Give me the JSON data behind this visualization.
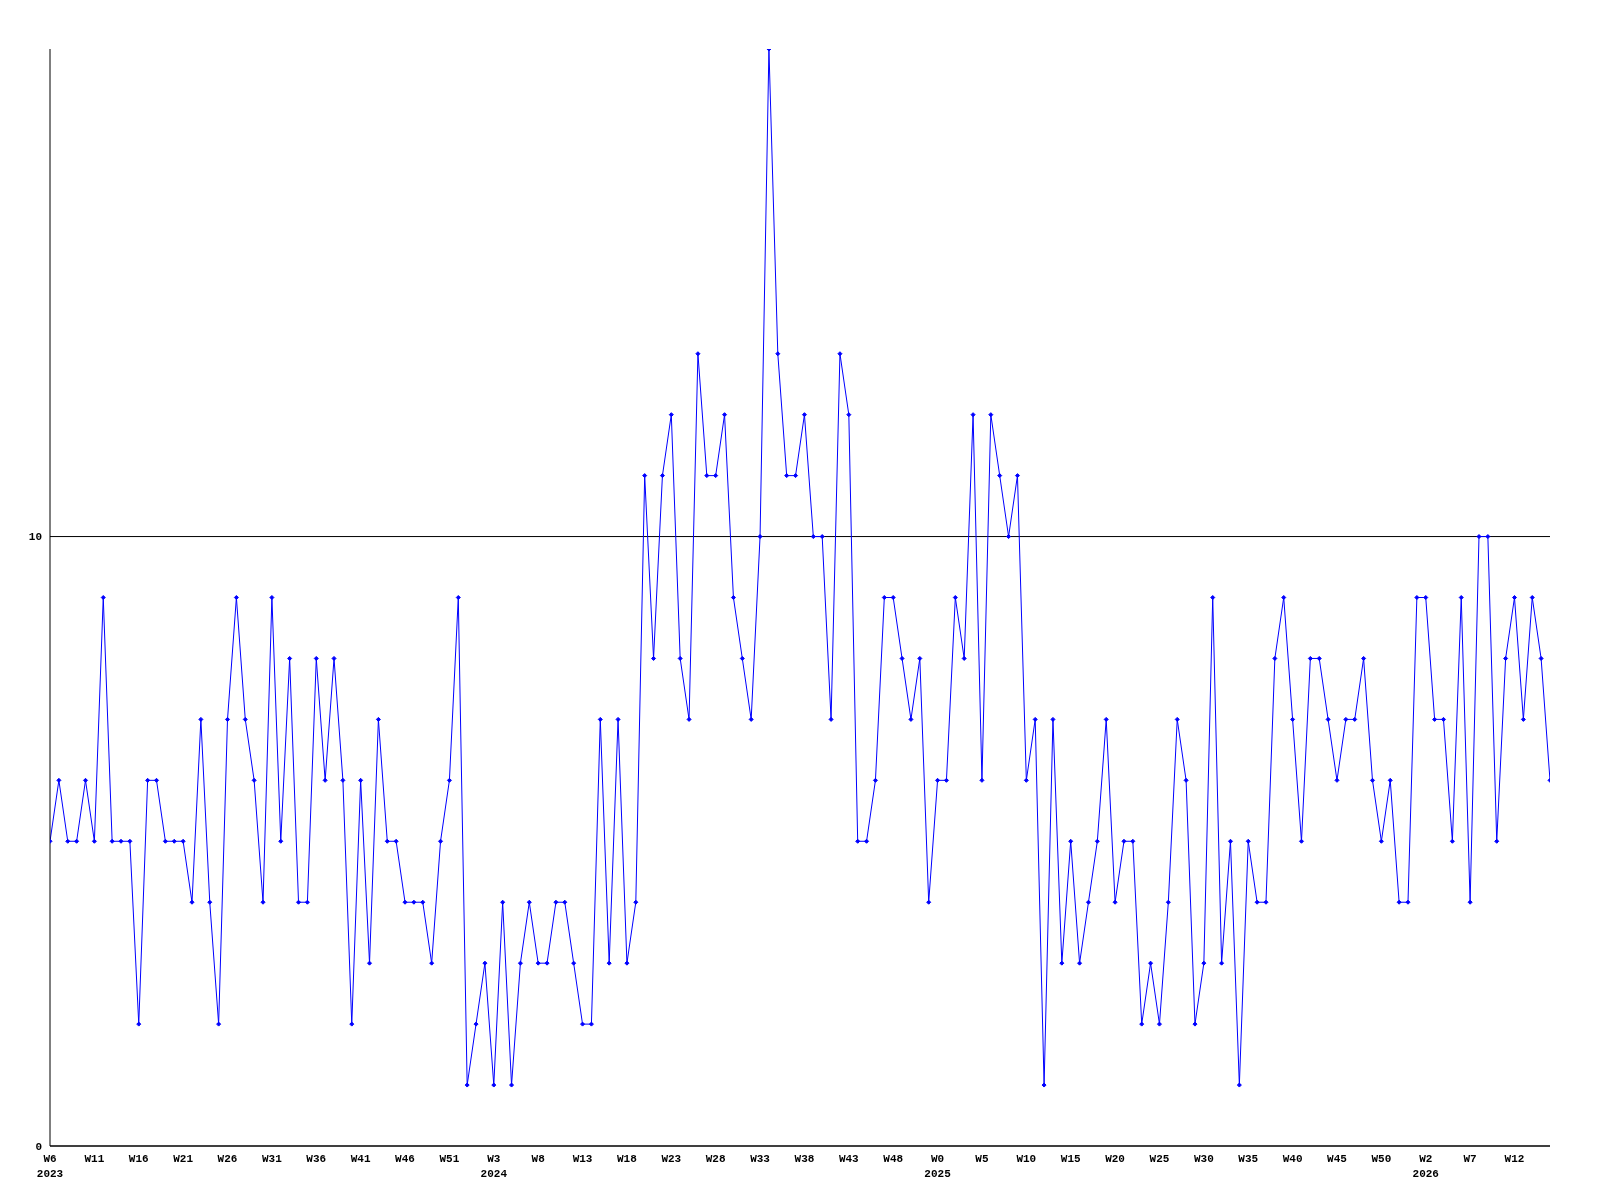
{
  "chart_data": {
    "type": "line",
    "categories": [
      "W6\n2023",
      null,
      null,
      null,
      null,
      "W11",
      null,
      null,
      null,
      null,
      "W16",
      null,
      null,
      null,
      null,
      "W21",
      null,
      null,
      null,
      null,
      "W26",
      null,
      null,
      null,
      null,
      "W31",
      null,
      null,
      null,
      null,
      "W36",
      null,
      null,
      null,
      null,
      "W41",
      null,
      null,
      null,
      null,
      "W46",
      null,
      null,
      null,
      null,
      "W51",
      null,
      null,
      null,
      null,
      "W3\n2024",
      null,
      null,
      null,
      null,
      "W8",
      null,
      null,
      null,
      null,
      "W13",
      null,
      null,
      null,
      null,
      "W18",
      null,
      null,
      null,
      null,
      "W23",
      null,
      null,
      null,
      null,
      "W28",
      null,
      null,
      null,
      null,
      "W33",
      null,
      null,
      null,
      null,
      "W38",
      null,
      null,
      null,
      null,
      "W43",
      null,
      null,
      null,
      null,
      "W48",
      null,
      null,
      null,
      null,
      "W0\n2025",
      null,
      null,
      null,
      null,
      "W5",
      null,
      null,
      null,
      null,
      "W10",
      null,
      null,
      null,
      null,
      "W15",
      null,
      null,
      null,
      null,
      "W20",
      null,
      null,
      null,
      null,
      "W25",
      null,
      null,
      null,
      null,
      "W30",
      null,
      null,
      null,
      null,
      "W35",
      null,
      null,
      null,
      null,
      "W40",
      null,
      null,
      null,
      null,
      "W45",
      null,
      null,
      null,
      null,
      "W50",
      null,
      null,
      null,
      null,
      "W2\n2026",
      null,
      null,
      null,
      null,
      "W7",
      null,
      null,
      null,
      null,
      "W12",
      null,
      null,
      null,
      null
    ],
    "series": [
      {
        "color": "#0000ff",
        "values": [
          5,
          6,
          5,
          5,
          6,
          5,
          9,
          5,
          5,
          5,
          2,
          6,
          6,
          5,
          5,
          5,
          4,
          7,
          4,
          2,
          7,
          9,
          7,
          6,
          4,
          9,
          5,
          8,
          4,
          4,
          8,
          6,
          8,
          6,
          2,
          6,
          3,
          7,
          5,
          5,
          4,
          4,
          4,
          3,
          5,
          6,
          9,
          1,
          2,
          3,
          1,
          4,
          1,
          3,
          4,
          3,
          3,
          4,
          4,
          3,
          2,
          2,
          7,
          3,
          7,
          3,
          4,
          11,
          8,
          11,
          12,
          8,
          7,
          13,
          11,
          11,
          12,
          9,
          8,
          7,
          10,
          18,
          13,
          11,
          11,
          12,
          10,
          10,
          7,
          13,
          12,
          5,
          5,
          6,
          9,
          9,
          8,
          7,
          8,
          4,
          6,
          6,
          9,
          8,
          12,
          6,
          12,
          11,
          10,
          11,
          6,
          7,
          1,
          7,
          3,
          5,
          3,
          4,
          5,
          7,
          4,
          5,
          5,
          2,
          3,
          2,
          4,
          7,
          6,
          2,
          3,
          9,
          3,
          5,
          1,
          5,
          4,
          4,
          8,
          9,
          7,
          5,
          8,
          8,
          7,
          6,
          7,
          7,
          8,
          6,
          5,
          6,
          4,
          4,
          9,
          9,
          7,
          7,
          5,
          9,
          4,
          10,
          10,
          5,
          8,
          9,
          7,
          9,
          8,
          6
        ]
      }
    ],
    "ylim": [
      0,
      18
    ],
    "yticks": [
      0,
      10
    ],
    "grid": "y",
    "legend": false,
    "marker": "diamond",
    "line_style": "solid"
  }
}
